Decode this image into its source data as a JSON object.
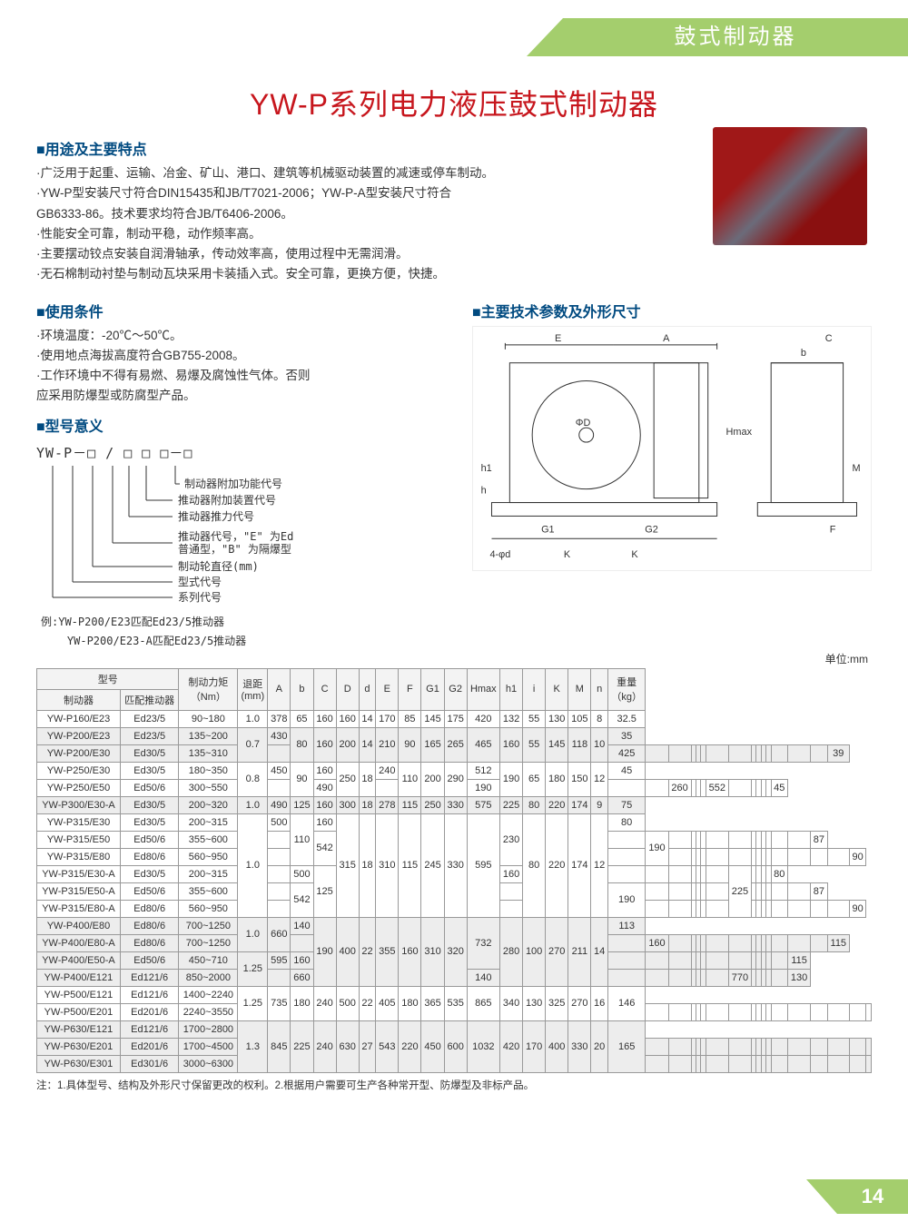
{
  "colors": {
    "accent_green": "#a4ce6d",
    "title_red": "#c7161d",
    "section_blue": "#004a80",
    "text": "#333333",
    "background": "#ffffff",
    "table_border": "#999999",
    "table_header_bg": "#f3f3f3",
    "shaded_row": "#ededed"
  },
  "page_tab": "鼓式制动器",
  "title": "YW-P系列电力液压鼓式制动器",
  "page_number": "14",
  "s1": {
    "title_prefix": "■",
    "title": "用途及主要特点",
    "lines": [
      "·广泛用于起重、运输、冶金、矿山、港口、建筑等机械驱动装置的减速或停车制动。",
      "·YW-P型安装尺寸符合DIN15435和JB/T7021-2006；YW-P-A型安装尺寸符合",
      "GB6333-86。技术要求均符合JB/T6406-2006。",
      "·性能安全可靠，制动平稳，动作频率高。",
      "·主要摆动铰点安装自润滑轴承，传动效率高，使用过程中无需润滑。",
      "·无石棉制动衬垫与制动瓦块采用卡装插入式。安全可靠，更换方便，快捷。"
    ]
  },
  "s2": {
    "title": "使用条件",
    "lines": [
      "·环境温度：-20℃～50℃。",
      "·使用地点海拔高度符合GB755-2008。",
      "·工作环境中不得有易燃、易爆及腐蚀性气体。否则",
      "应采用防爆型或防腐型产品。"
    ]
  },
  "s3": {
    "title": "型号意义",
    "code": "YW-P－□ / □ □ □－□",
    "labels": [
      "制动器附加功能代号",
      "推动器附加装置代号",
      "推动器推力代号",
      "推动器代号，\"E\" 为Ed\n普通型，\"B\" 为隔爆型",
      "制动轮直径(mm)",
      "型式代号",
      "系列代号"
    ],
    "example1": "例:YW-P200/E23匹配Ed23/5推动器",
    "example2": "    YW-P200/E23-A匹配Ed23/5推动器"
  },
  "s4": {
    "title": "主要技术参数及外形尺寸",
    "dim_labels": [
      "E",
      "A",
      "C",
      "b",
      "Hmax",
      "h1",
      "h",
      "G1",
      "G2",
      "M",
      "F",
      "ΦD",
      "4-φd",
      "K",
      "K"
    ]
  },
  "unit_label": "单位:mm",
  "table": {
    "header_group": {
      "model": "型号",
      "brake": "制动器",
      "thruster": "匹配推动器"
    },
    "cols": [
      "制动力矩\n（Nm）",
      "退距\n(mm)",
      "A",
      "b",
      "C",
      "D",
      "d",
      "E",
      "F",
      "G1",
      "G2",
      "Hmax",
      "h1",
      "i",
      "K",
      "M",
      "n",
      "重量\n（kg）"
    ],
    "rows": [
      {
        "m": "YW-P160/E23",
        "t": "Ed23/5",
        "tq": "90~180",
        "gap": "1.0",
        "A": "378",
        "b": "65",
        "C": "160",
        "D": "160",
        "d": "14",
        "E": "170",
        "F": "85",
        "G1": "145",
        "G2": "175",
        "Hm": "420",
        "h1": "132",
        "i": "55",
        "K": "130",
        "M": "105",
        "n": "8",
        "w": "32.5"
      },
      {
        "m": "YW-P200/E23",
        "t": "Ed23/5",
        "tq": "135~200",
        "gap": "0.7",
        "A": "430",
        "b": "80",
        "C": "160",
        "D": "200",
        "d": "14",
        "E": "210",
        "F": "90",
        "G1": "165",
        "G2": "265",
        "Hm": "465",
        "h1": "160",
        "i": "55",
        "K": "145",
        "M": "118",
        "n": "10",
        "w": "35",
        "shaded": true
      },
      {
        "m": "YW-P200/E30",
        "t": "Ed30/5",
        "tq": "135~310",
        "A": "425",
        "w": "39",
        "shaded": true
      },
      {
        "m": "YW-P250/E30",
        "t": "Ed30/5",
        "tq": "180~350",
        "gap": "0.8",
        "A": "450",
        "b": "90",
        "C": "160",
        "D": "250",
        "d": "18",
        "E": "240",
        "F": "110",
        "G1": "200",
        "G2": "290",
        "Hm": "512",
        "h1": "190",
        "i": "65",
        "K": "180",
        "M": "150",
        "n": "12",
        "w": "45"
      },
      {
        "m": "YW-P250/E50",
        "t": "Ed50/6",
        "tq": "300~550",
        "A": "490",
        "C": "190",
        "E": "260",
        "Hm": "552",
        "w": "45"
      },
      {
        "m": "YW-P300/E30-A",
        "t": "Ed30/5",
        "tq": "200~320",
        "gap": "1.0",
        "A": "490",
        "b": "125",
        "C": "160",
        "D": "300",
        "d": "18",
        "E": "278",
        "F": "115",
        "G1": "250",
        "G2": "330",
        "Hm": "575",
        "h1": "225",
        "i": "80",
        "K": "220",
        "M": "174",
        "n": "9",
        "w": "75",
        "shaded": true
      },
      {
        "m": "YW-P315/E30",
        "t": "Ed30/5",
        "tq": "200~315",
        "gap": "1.0",
        "A": "500",
        "b": "110",
        "C": "160",
        "D": "315",
        "d": "18",
        "E": "310",
        "F": "115",
        "G1": "245",
        "G2": "330",
        "Hm": "595",
        "h1": "230",
        "i": "80",
        "K": "220",
        "M": "174",
        "n": "12",
        "w": "80"
      },
      {
        "m": "YW-P315/E50",
        "t": "Ed50/6",
        "tq": "355~600",
        "A": "542",
        "C": "190",
        "w": "87"
      },
      {
        "m": "YW-P315/E80",
        "t": "Ed80/6",
        "tq": "560~950",
        "w": "90"
      },
      {
        "m": "YW-P315/E30-A",
        "t": "Ed30/5",
        "tq": "200~315",
        "A": "500",
        "b": "125",
        "C": "160",
        "h1": "225",
        "w": "80"
      },
      {
        "m": "YW-P315/E50-A",
        "t": "Ed50/6",
        "tq": "355~600",
        "A": "542",
        "C": "190",
        "w": "87"
      },
      {
        "m": "YW-P315/E80-A",
        "t": "Ed80/6",
        "tq": "560~950",
        "w": "90"
      },
      {
        "m": "YW-P400/E80",
        "t": "Ed80/6",
        "tq": "700~1250",
        "gap": "1.0",
        "A": "660",
        "b": "140",
        "C": "190",
        "D": "400",
        "d": "22",
        "E": "355",
        "F": "160",
        "G1": "310",
        "G2": "320",
        "Hm": "732",
        "h1": "280",
        "i": "100",
        "K": "270",
        "M": "211",
        "n": "14",
        "w": "113",
        "shaded": true
      },
      {
        "m": "YW-P400/E80-A",
        "t": "Ed80/6",
        "tq": "700~1250",
        "b": "160",
        "w": "115",
        "shaded": true
      },
      {
        "m": "YW-P400/E50-A",
        "t": "Ed50/6",
        "tq": "450~710",
        "gap": "1.25",
        "A": "595",
        "b": "160",
        "w": "115",
        "shaded": true
      },
      {
        "m": "YW-P400/E121",
        "t": "Ed121/6",
        "tq": "850~2000",
        "A": "660",
        "b": "140",
        "Hm": "770",
        "w": "130",
        "shaded": true
      },
      {
        "m": "YW-P500/E121",
        "t": "Ed121/6",
        "tq": "1400~2240",
        "gap": "1.25",
        "A": "735",
        "b": "180",
        "C": "240",
        "D": "500",
        "d": "22",
        "E": "405",
        "F": "180",
        "G1": "365",
        "G2": "535",
        "Hm": "865",
        "h1": "340",
        "i": "130",
        "K": "325",
        "M": "270",
        "n": "16",
        "w": "146"
      },
      {
        "m": "YW-P500/E201",
        "t": "Ed201/6",
        "tq": "2240~3550"
      },
      {
        "m": "YW-P630/E121",
        "t": "Ed121/6",
        "tq": "1700~2800",
        "gap": "1.3",
        "A": "845",
        "b": "225",
        "C": "240",
        "D": "630",
        "d": "27",
        "E": "543",
        "F": "220",
        "G1": "450",
        "G2": "600",
        "Hm": "1032",
        "h1": "420",
        "i": "170",
        "K": "400",
        "M": "330",
        "n": "20",
        "w": "165",
        "shaded": true
      },
      {
        "m": "YW-P630/E201",
        "t": "Ed201/6",
        "tq": "1700~4500",
        "shaded": true
      },
      {
        "m": "YW-P630/E301",
        "t": "Ed301/6",
        "tq": "3000~6300",
        "shaded": true
      }
    ]
  },
  "footnote": "注：1.具体型号、结构及外形尺寸保留更改的权利。2.根据用户需要可生产各种常开型、防爆型及非标产品。"
}
